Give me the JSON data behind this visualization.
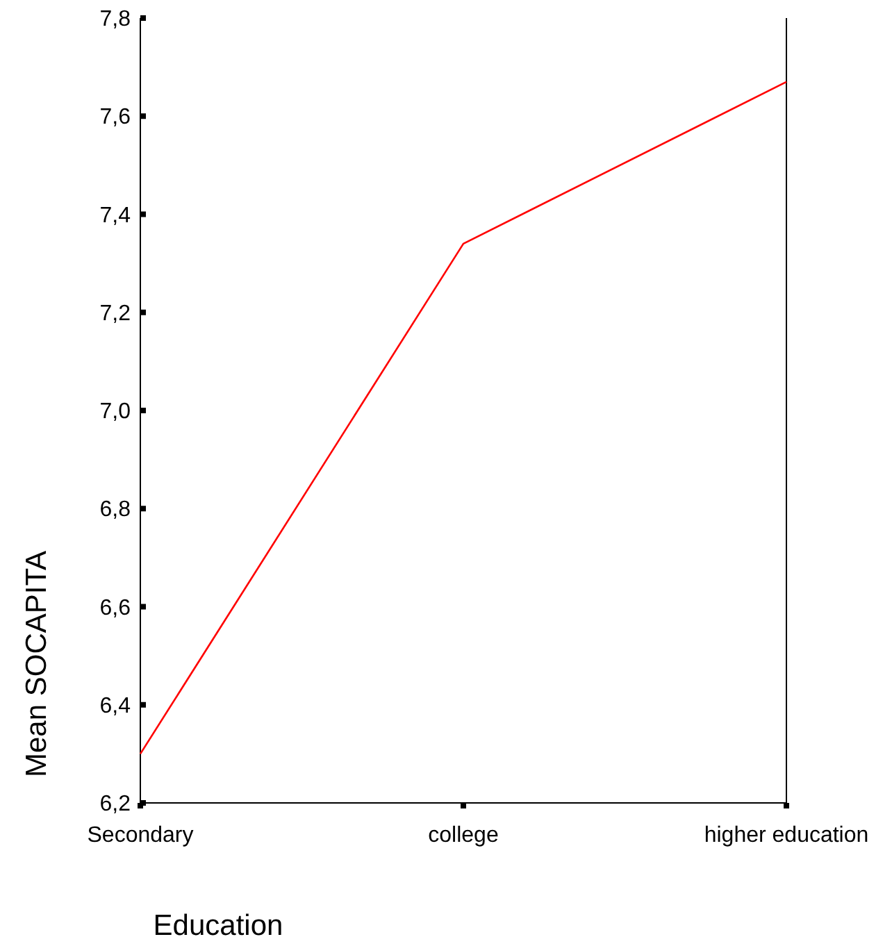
{
  "chart_data": {
    "type": "line",
    "xlabel": "Education",
    "ylabel": "Mean SOCAPITA",
    "categories": [
      "Secondary",
      "college",
      "higher education"
    ],
    "series": [
      {
        "color": "#ff0000",
        "values": [
          6.3,
          7.34,
          7.67
        ]
      }
    ],
    "ylim": [
      6.2,
      7.8
    ],
    "yticks": [
      {
        "value": 6.2,
        "label": "6,2"
      },
      {
        "value": 6.4,
        "label": "6,4"
      },
      {
        "value": 6.6,
        "label": "6,6"
      },
      {
        "value": 6.8,
        "label": "6,8"
      },
      {
        "value": 7.0,
        "label": "7,0"
      },
      {
        "value": 7.2,
        "label": "7,2"
      },
      {
        "value": 7.4,
        "label": "7,4"
      },
      {
        "value": 7.6,
        "label": "7,6"
      },
      {
        "value": 7.8,
        "label": "7,8"
      }
    ],
    "grid": false,
    "marker": "none",
    "line_style": "solid"
  }
}
